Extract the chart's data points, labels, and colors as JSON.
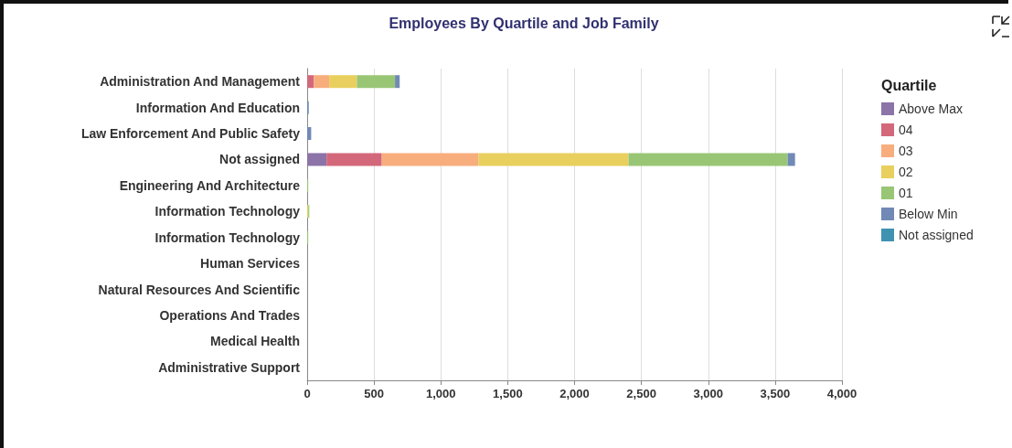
{
  "chart_data": {
    "type": "bar",
    "orientation": "horizontal",
    "stacked": true,
    "title": "Employees By Quartile and Job Family",
    "legend_title": "Quartile",
    "legend": "top right",
    "grid": "x",
    "categories": [
      "Administration And Management",
      "Information And Education",
      "Law Enforcement And Public Safety",
      "Not assigned",
      "Engineering And Architecture",
      "Information Technology",
      "Information Technology",
      "Human Services",
      "Natural Resources And Scientific",
      "Operations And Trades",
      "Medical Health",
      "Administrative Support"
    ],
    "series": [
      {
        "name": "Above Max",
        "color": "#8c73a8",
        "values": [
          0,
          0,
          0,
          145,
          0,
          0,
          0,
          0,
          0,
          0,
          0,
          0
        ]
      },
      {
        "name": "04",
        "color": "#d3687b",
        "values": [
          50,
          0,
          0,
          413,
          0,
          0,
          0,
          0,
          0,
          0,
          0,
          0
        ]
      },
      {
        "name": "03",
        "color": "#f8ad7c",
        "values": [
          115,
          0,
          0,
          723,
          0,
          0,
          0,
          0,
          0,
          0,
          0,
          0
        ]
      },
      {
        "name": "02",
        "color": "#e9cf5d",
        "values": [
          207,
          0,
          0,
          1122,
          0,
          8,
          0,
          0,
          0,
          0,
          0,
          0
        ]
      },
      {
        "name": "01",
        "color": "#99c675",
        "values": [
          285,
          0,
          0,
          1191,
          8,
          8,
          8,
          0,
          0,
          0,
          0,
          0
        ]
      },
      {
        "name": "Below Min",
        "color": "#7189b5",
        "values": [
          35,
          12,
          30,
          55,
          0,
          0,
          0,
          0,
          0,
          0,
          0,
          0
        ]
      },
      {
        "name": "Not assigned",
        "color": "#3f92b0",
        "values": [
          0,
          0,
          0,
          0,
          0,
          0,
          0,
          0,
          0,
          0,
          0,
          0
        ]
      }
    ],
    "xlim": [
      0,
      4000
    ],
    "xticks": [
      0,
      500,
      {
        "value": 1000,
        "label": "1,000"
      },
      {
        "value": 1500,
        "label": "1,500"
      },
      {
        "value": 2000,
        "label": "2,000"
      },
      {
        "value": 2500,
        "label": "2,500"
      },
      {
        "value": 3000,
        "label": "3,000"
      },
      {
        "value": 3500,
        "label": "3,500"
      },
      {
        "value": 4000,
        "label": "4,000"
      }
    ]
  }
}
